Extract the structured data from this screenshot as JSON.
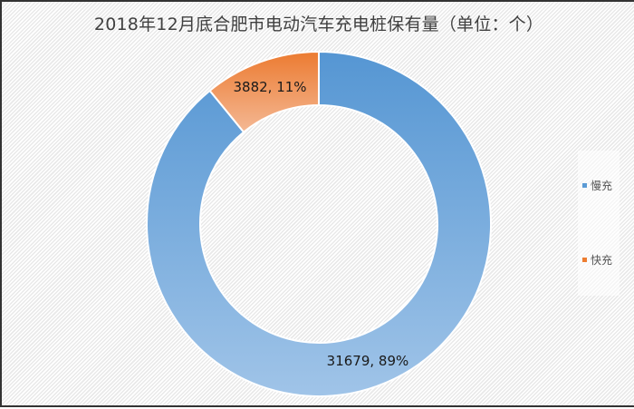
{
  "chart_data": {
    "type": "pie",
    "subtype": "donut",
    "title": "2018年12月底合肥市电动汽车充电桩保有量（单位：个）",
    "categories": [
      "慢充",
      "快充"
    ],
    "values": [
      31679,
      3882
    ],
    "percentages": [
      89,
      11
    ],
    "data_labels": [
      "31679, 89%",
      "3882, 11%"
    ],
    "colors": [
      "#5b9bd5",
      "#ed7d31"
    ],
    "legend_position": "right",
    "start_angle_deg": 0,
    "direction": "clockwise"
  },
  "legend": {
    "items": [
      {
        "label": "慢充",
        "color": "#5b9bd5"
      },
      {
        "label": "快充",
        "color": "#ed7d31"
      }
    ]
  }
}
